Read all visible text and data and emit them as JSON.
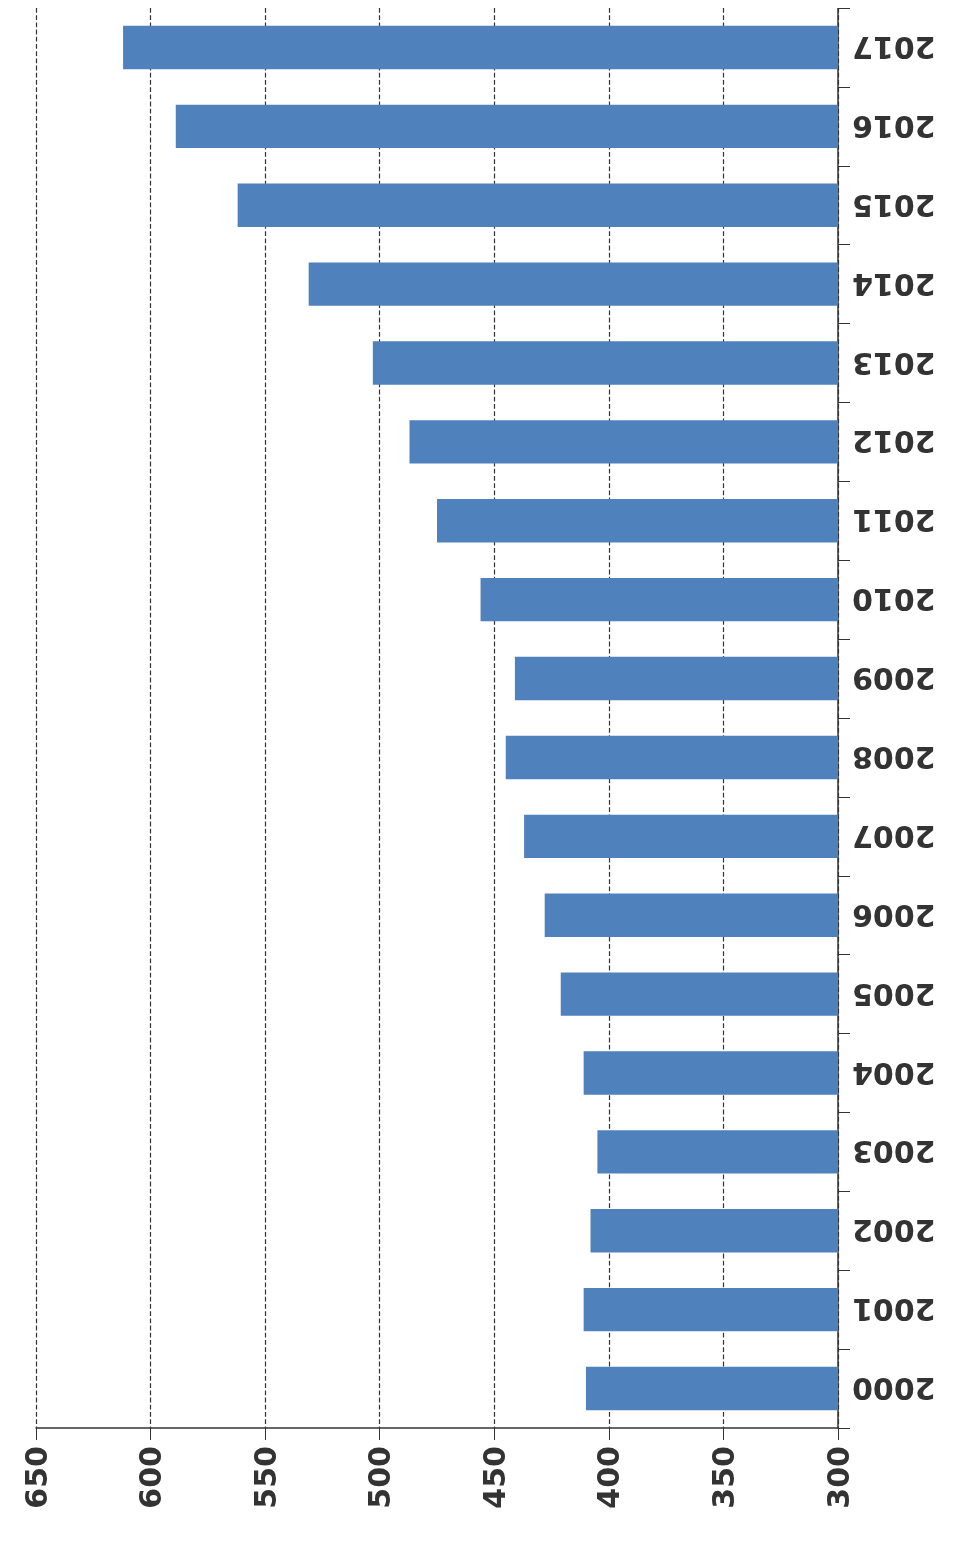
{
  "chart_data": {
    "type": "bar",
    "orientation": "horizontal",
    "categories": [
      "2017",
      "2016",
      "2015",
      "2014",
      "2013",
      "2012",
      "2011",
      "2010",
      "2009",
      "2008",
      "2007",
      "2006",
      "2005",
      "2004",
      "2003",
      "2002",
      "2001",
      "2000"
    ],
    "values": [
      612,
      589,
      562,
      531,
      503,
      487,
      475,
      456,
      441,
      445,
      437,
      428,
      421,
      411,
      405,
      408,
      411,
      410
    ],
    "color": "#4f81bd",
    "xlim": [
      650,
      300
    ],
    "xticks": [
      650,
      600,
      550,
      500,
      450,
      400,
      350,
      300
    ],
    "grid": "x"
  }
}
